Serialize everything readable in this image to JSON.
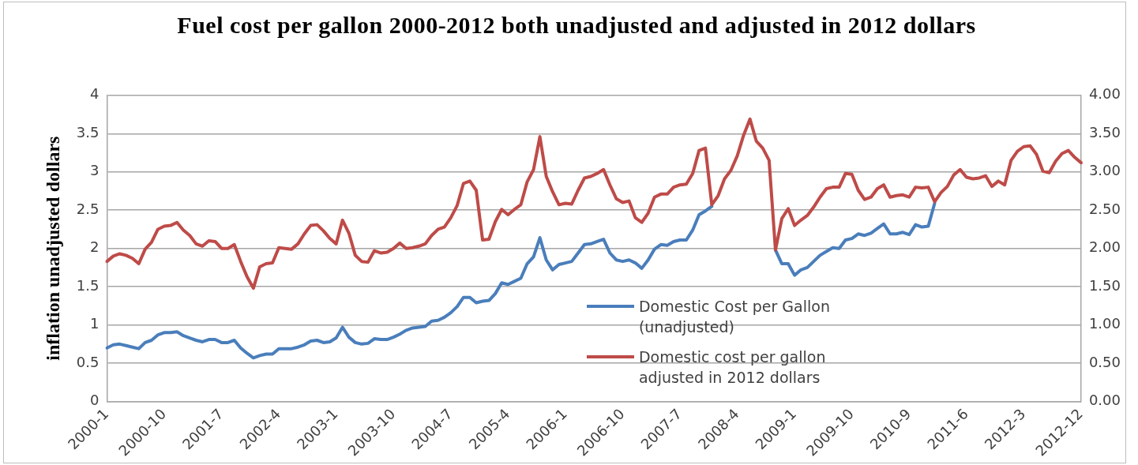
{
  "chart_data": {
    "type": "line",
    "title": "Fuel cost per gallon 2000-2012 both unadjusted and adjusted in 2012 dollars",
    "ylabel": "inflation unadjusted dollars",
    "categories": [
      "2000-1",
      null,
      null,
      null,
      null,
      null,
      null,
      null,
      null,
      "2000-10",
      null,
      null,
      null,
      null,
      null,
      null,
      null,
      null,
      "2001-7",
      null,
      null,
      null,
      null,
      null,
      null,
      null,
      null,
      "2002-4",
      null,
      null,
      null,
      null,
      null,
      null,
      null,
      null,
      "2003-1",
      null,
      null,
      null,
      null,
      null,
      null,
      null,
      null,
      "2003-10",
      null,
      null,
      null,
      null,
      null,
      null,
      null,
      null,
      "2004-7",
      null,
      null,
      null,
      null,
      null,
      null,
      null,
      null,
      "2005-4",
      null,
      null,
      null,
      null,
      null,
      null,
      null,
      null,
      "2006-1",
      null,
      null,
      null,
      null,
      null,
      null,
      null,
      null,
      "2006-10",
      null,
      null,
      null,
      null,
      null,
      null,
      null,
      null,
      "2007-7",
      null,
      null,
      null,
      null,
      null,
      null,
      null,
      null,
      "2008-4",
      null,
      null,
      null,
      null,
      null,
      null,
      null,
      null,
      "2009-1",
      null,
      null,
      null,
      null,
      null,
      null,
      null,
      null,
      "2009-10",
      null,
      null,
      null,
      null,
      null,
      null,
      null,
      null,
      "2010-9",
      null,
      null,
      null,
      null,
      null,
      null,
      null,
      null,
      "2011-6",
      null,
      null,
      null,
      null,
      null,
      null,
      null,
      null,
      "2012-3",
      null,
      null,
      null,
      null,
      null,
      null,
      null,
      null,
      "2012-12"
    ],
    "series": [
      {
        "name": "Domestic Cost per Gallon (unadjusted)",
        "color": "#4a7ebb",
        "values": [
          0.7,
          0.74,
          0.75,
          0.73,
          0.71,
          0.69,
          0.77,
          0.8,
          0.87,
          0.9,
          0.9,
          0.91,
          0.86,
          0.83,
          0.8,
          0.78,
          0.81,
          0.81,
          0.77,
          0.77,
          0.8,
          0.7,
          0.63,
          0.57,
          0.6,
          0.62,
          0.62,
          0.69,
          0.69,
          0.69,
          0.71,
          0.74,
          0.79,
          0.8,
          0.77,
          0.78,
          0.83,
          0.97,
          0.84,
          0.77,
          0.75,
          0.76,
          0.82,
          0.81,
          0.81,
          0.84,
          0.88,
          0.93,
          0.96,
          0.97,
          0.98,
          1.05,
          1.06,
          1.1,
          1.16,
          1.24,
          1.36,
          1.36,
          1.29,
          1.31,
          1.32,
          1.41,
          1.55,
          1.53,
          1.57,
          1.61,
          1.8,
          1.89,
          2.14,
          1.85,
          1.72,
          1.79,
          1.81,
          1.83,
          1.94,
          2.05,
          2.06,
          2.09,
          2.12,
          1.94,
          1.85,
          1.83,
          1.85,
          1.81,
          1.74,
          1.85,
          1.99,
          2.05,
          2.04,
          2.09,
          2.11,
          2.11,
          2.24,
          2.44,
          2.49,
          2.55,
          null,
          null,
          null,
          null,
          null,
          null,
          null,
          null,
          null,
          1.98,
          1.8,
          1.8,
          1.65,
          1.72,
          1.75,
          1.83,
          1.91,
          1.96,
          2.01,
          2.0,
          2.11,
          2.13,
          2.19,
          2.17,
          2.2,
          2.26,
          2.32,
          2.19,
          2.19,
          2.21,
          2.18,
          2.31,
          2.28,
          2.29,
          2.59,
          null,
          null,
          null,
          null,
          null,
          null,
          null,
          null,
          null,
          null,
          null,
          null,
          null,
          null,
          null,
          null,
          null,
          null,
          null,
          null,
          null,
          null,
          null
        ]
      },
      {
        "name": "Domestic cost per gallon adjusted in 2012 dollars",
        "color": "#be4b48",
        "axis": "y2",
        "values": [
          1.83,
          1.9,
          1.93,
          1.91,
          1.87,
          1.8,
          1.99,
          2.08,
          2.25,
          2.29,
          2.3,
          2.34,
          2.24,
          2.17,
          2.06,
          2.03,
          2.1,
          2.09,
          2.0,
          2.0,
          2.05,
          1.83,
          1.63,
          1.48,
          1.76,
          1.8,
          1.81,
          2.01,
          2.0,
          1.99,
          2.06,
          2.19,
          2.3,
          2.31,
          2.23,
          2.13,
          2.06,
          2.37,
          2.2,
          1.91,
          1.83,
          1.82,
          1.97,
          1.94,
          1.95,
          2.0,
          2.07,
          2.0,
          2.01,
          2.03,
          2.06,
          2.17,
          2.25,
          2.28,
          2.4,
          2.56,
          2.85,
          2.88,
          2.76,
          2.11,
          2.12,
          2.35,
          2.51,
          2.44,
          2.51,
          2.57,
          2.87,
          3.03,
          3.46,
          2.94,
          2.74,
          2.57,
          2.59,
          2.58,
          2.76,
          2.92,
          2.94,
          2.98,
          3.03,
          2.83,
          2.65,
          2.6,
          2.62,
          2.4,
          2.34,
          2.46,
          2.67,
          2.71,
          2.71,
          2.8,
          2.83,
          2.84,
          2.98,
          3.28,
          3.31,
          2.57,
          2.69,
          2.91,
          3.02,
          3.21,
          3.48,
          3.69,
          3.4,
          3.31,
          3.15,
          1.98,
          2.39,
          2.52,
          2.3,
          2.37,
          2.43,
          2.54,
          2.67,
          2.78,
          2.8,
          2.8,
          2.98,
          2.97,
          2.76,
          2.64,
          2.67,
          2.78,
          2.83,
          2.67,
          2.69,
          2.7,
          2.67,
          2.8,
          2.79,
          2.8,
          2.61,
          2.73,
          2.81,
          2.96,
          3.03,
          2.93,
          2.91,
          2.92,
          2.95,
          2.81,
          2.88,
          2.83,
          3.15,
          3.27,
          3.33,
          3.34,
          3.23,
          3.01,
          2.99,
          3.14,
          3.24,
          3.28,
          3.19,
          3.12
        ]
      }
    ],
    "ylim": [
      0,
      4
    ],
    "yticks": [
      0,
      0.5,
      1,
      1.5,
      2,
      2.5,
      3,
      3.5,
      4
    ],
    "y2lim": [
      0,
      4
    ],
    "y2ticks": [
      {
        "value": 0,
        "label": "0.00"
      },
      {
        "value": 0.5,
        "label": "0.50"
      },
      {
        "value": 1,
        "label": "1.00"
      },
      {
        "value": 1.5,
        "label": "1.50"
      },
      {
        "value": 2,
        "label": "2.00"
      },
      {
        "value": 2.5,
        "label": "2.50"
      },
      {
        "value": 3,
        "label": "3.00"
      },
      {
        "value": 3.5,
        "label": "3.50"
      },
      {
        "value": 4,
        "label": "4.00"
      }
    ],
    "grid": "y",
    "legend": "bottom right"
  }
}
